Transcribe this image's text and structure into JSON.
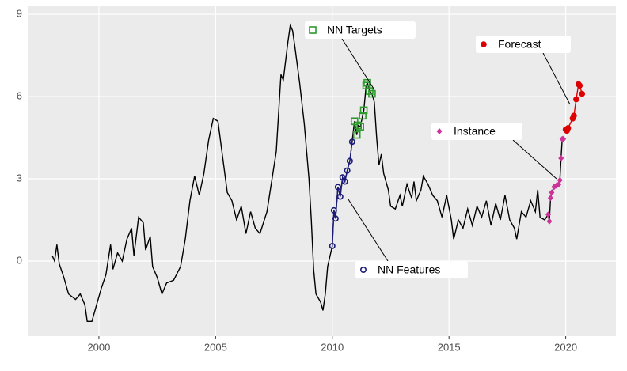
{
  "chart_data": {
    "type": "line",
    "color": "#000000",
    "x": [
      1998.0,
      1998.1,
      1998.2,
      1998.3,
      1998.5,
      1998.7,
      1999.0,
      1999.2,
      1999.4,
      1999.5,
      1999.7,
      1999.9,
      2000.1,
      2000.3,
      2000.5,
      2000.6,
      2000.8,
      2001.0,
      2001.2,
      2001.4,
      2001.5,
      2001.7,
      2001.9,
      2002.0,
      2002.2,
      2002.3,
      2002.5,
      2002.7,
      2002.9,
      2003.2,
      2003.5,
      2003.7,
      2003.9,
      2004.1,
      2004.3,
      2004.5,
      2004.7,
      2004.9,
      2005.1,
      2005.3,
      2005.5,
      2005.7,
      2005.9,
      2006.1,
      2006.3,
      2006.5,
      2006.7,
      2006.9,
      2007.2,
      2007.4,
      2007.6,
      2007.7,
      2007.8,
      2007.9,
      2008.0,
      2008.1,
      2008.2,
      2008.3,
      2008.4,
      2008.6,
      2008.8,
      2009.0,
      2009.1,
      2009.2,
      2009.3,
      2009.5,
      2009.6,
      2009.7,
      2009.8,
      2010.0,
      2010.07,
      2010.14,
      2010.24,
      2010.34,
      2010.44,
      2010.54,
      2010.64,
      2010.75,
      2010.85,
      2010.95,
      2011.05,
      2011.1,
      2011.2,
      2011.3,
      2011.35,
      2011.45,
      2011.5,
      2011.6,
      2011.7,
      2011.8,
      2011.9,
      2012.0,
      2012.1,
      2012.2,
      2012.4,
      2012.5,
      2012.7,
      2012.9,
      2013.0,
      2013.2,
      2013.4,
      2013.5,
      2013.6,
      2013.8,
      2013.9,
      2014.1,
      2014.3,
      2014.5,
      2014.7,
      2014.9,
      2015.1,
      2015.2,
      2015.4,
      2015.6,
      2015.8,
      2016.0,
      2016.2,
      2016.4,
      2016.6,
      2016.8,
      2017.0,
      2017.2,
      2017.4,
      2017.6,
      2017.8,
      2017.9,
      2018.1,
      2018.3,
      2018.5,
      2018.7,
      2018.8,
      2018.9,
      2019.1,
      2019.25,
      2019.3,
      2019.35,
      2019.4,
      2019.5,
      2019.6,
      2019.7,
      2019.75,
      2019.8,
      2019.85,
      2019.9
    ],
    "values": [
      0.2,
      0.0,
      0.6,
      -0.1,
      -0.6,
      -1.2,
      -1.4,
      -1.2,
      -1.6,
      -2.2,
      -2.2,
      -1.6,
      -1.0,
      -0.5,
      0.6,
      -0.3,
      0.3,
      0.0,
      0.8,
      1.2,
      0.2,
      1.6,
      1.4,
      0.4,
      0.9,
      -0.2,
      -0.6,
      -1.2,
      -0.8,
      -0.7,
      -0.2,
      0.8,
      2.2,
      3.1,
      2.4,
      3.2,
      4.4,
      5.2,
      5.1,
      3.8,
      2.5,
      2.2,
      1.5,
      2.0,
      1.0,
      1.8,
      1.2,
      1.0,
      1.8,
      2.9,
      4.0,
      5.4,
      6.8,
      6.6,
      7.3,
      8.0,
      8.6,
      8.4,
      7.8,
      6.5,
      5.0,
      3.0,
      1.5,
      -0.3,
      -1.2,
      -1.5,
      -1.8,
      -1.2,
      -0.2,
      0.55,
      1.85,
      1.55,
      2.7,
      2.35,
      3.05,
      2.9,
      3.3,
      3.65,
      4.35,
      5.1,
      4.6,
      4.95,
      4.9,
      5.3,
      5.5,
      6.4,
      6.5,
      6.2,
      6.1,
      5.8,
      4.5,
      3.5,
      3.9,
      3.2,
      2.6,
      2.0,
      1.9,
      2.4,
      2.0,
      2.8,
      2.3,
      2.9,
      2.2,
      2.6,
      3.1,
      2.8,
      2.4,
      2.2,
      1.6,
      2.4,
      1.5,
      0.8,
      1.5,
      1.2,
      1.9,
      1.3,
      2.0,
      1.6,
      2.2,
      1.3,
      2.1,
      1.5,
      2.4,
      1.5,
      1.2,
      0.8,
      1.8,
      1.6,
      2.2,
      1.8,
      2.6,
      1.6,
      1.5,
      1.7,
      1.45,
      2.3,
      2.5,
      2.7,
      2.75,
      2.8,
      2.95,
      3.75,
      4.45,
      4.45
    ],
    "series": [
      {
        "name": "NN Features",
        "color": "#1c1c7a",
        "marker": "circle",
        "line": true,
        "x": [
          2010.0,
          2010.07,
          2010.14,
          2010.24,
          2010.34,
          2010.44,
          2010.54,
          2010.64,
          2010.75,
          2010.85
        ],
        "values": [
          0.55,
          1.85,
          1.55,
          2.7,
          2.35,
          3.05,
          2.9,
          3.3,
          3.65,
          4.35
        ]
      },
      {
        "name": "NN Targets",
        "color": "#2e9a2e",
        "marker": "square",
        "line": false,
        "x": [
          2010.95,
          2011.05,
          2011.1,
          2011.2,
          2011.3,
          2011.35,
          2011.45,
          2011.5,
          2011.6,
          2011.7
        ],
        "values": [
          5.1,
          4.6,
          4.95,
          4.9,
          5.3,
          5.5,
          6.4,
          6.5,
          6.2,
          6.1
        ]
      },
      {
        "name": "Instance",
        "color": "#cc3399",
        "marker": "diamond",
        "line": false,
        "x": [
          2019.25,
          2019.3,
          2019.35,
          2019.4,
          2019.5,
          2019.6,
          2019.7,
          2019.75,
          2019.8,
          2019.85,
          2019.9
        ],
        "values": [
          1.7,
          1.45,
          2.3,
          2.5,
          2.7,
          2.75,
          2.8,
          2.95,
          3.75,
          4.45,
          4.45
        ]
      },
      {
        "name": "Forecast",
        "color": "#dd0000",
        "marker": "dot",
        "line": true,
        "x": [
          2020.0,
          2020.05,
          2020.1,
          2020.3,
          2020.35,
          2020.45,
          2020.55,
          2020.6,
          2020.7
        ],
        "values": [
          4.8,
          4.75,
          4.85,
          5.2,
          5.3,
          5.9,
          6.45,
          6.4,
          6.1
        ]
      }
    ],
    "xlim": [
      1996.95,
      2022.15
    ],
    "ylim": [
      -2.74,
      9.29
    ],
    "xticks": [
      2000,
      2005,
      2010,
      2015,
      2020
    ],
    "yticks": [
      0,
      3,
      6,
      9
    ],
    "grid": true
  }
}
